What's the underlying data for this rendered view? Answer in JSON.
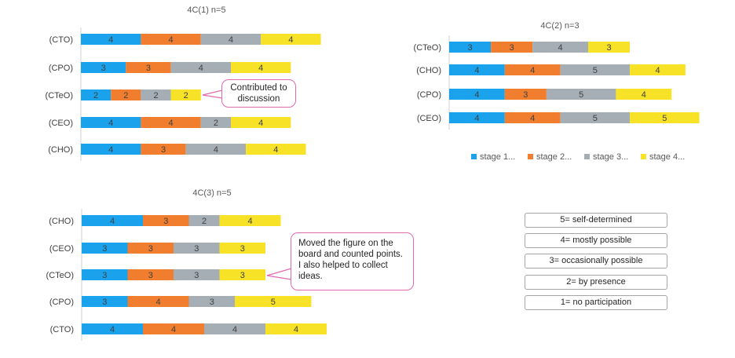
{
  "colors": {
    "stage1": "#1aa2ec",
    "stage2": "#f07e2e",
    "stage3": "#a5aeb5",
    "stage4": "#f7e228",
    "callout_border": "#e06ab0"
  },
  "chart_data": [
    {
      "id": "c1",
      "type": "bar",
      "stacked": true,
      "orientation": "horizontal",
      "title": "4C(1) n=5",
      "categories": [
        "(CTO)",
        "(CPO)",
        "(CTeO)",
        "(CEO)",
        "(CHO)"
      ],
      "series": [
        {
          "name": "stage 1...",
          "values": [
            4,
            3,
            2,
            4,
            4
          ]
        },
        {
          "name": "stage 2...",
          "values": [
            4,
            3,
            2,
            4,
            3
          ]
        },
        {
          "name": "stage 3...",
          "values": [
            4,
            4,
            2,
            2,
            4
          ]
        },
        {
          "name": "stage 4...",
          "values": [
            4,
            4,
            2,
            4,
            4
          ]
        }
      ],
      "xlim": [
        0,
        17
      ]
    },
    {
      "id": "c2",
      "type": "bar",
      "stacked": true,
      "orientation": "horizontal",
      "title": "4C(2) n=3",
      "categories": [
        "(CTeO)",
        "(CHO)",
        "(CPO)",
        "(CEO)"
      ],
      "series": [
        {
          "name": "stage 1...",
          "values": [
            3,
            4,
            4,
            4
          ]
        },
        {
          "name": "stage 2...",
          "values": [
            3,
            4,
            3,
            4
          ]
        },
        {
          "name": "stage 3...",
          "values": [
            4,
            5,
            5,
            5
          ]
        },
        {
          "name": "stage 4...",
          "values": [
            3,
            4,
            4,
            5
          ]
        }
      ],
      "legend": [
        "stage 1...",
        "stage 2...",
        "stage 3...",
        "stage 4..."
      ],
      "xlim": [
        0,
        18
      ]
    },
    {
      "id": "c3",
      "type": "bar",
      "stacked": true,
      "orientation": "horizontal",
      "title": "4C(3) n=5",
      "categories": [
        "(CHO)",
        "(CEO)",
        "(CTeO)",
        "(CPO)",
        "(CTO)"
      ],
      "series": [
        {
          "name": "stage 1...",
          "values": [
            4,
            3,
            3,
            3,
            4
          ]
        },
        {
          "name": "stage 2...",
          "values": [
            3,
            3,
            3,
            4,
            4
          ]
        },
        {
          "name": "stage 3...",
          "values": [
            2,
            3,
            3,
            3,
            4
          ]
        },
        {
          "name": "stage 4...",
          "values": [
            4,
            3,
            3,
            5,
            4
          ]
        }
      ],
      "xlim": [
        0,
        17
      ]
    }
  ],
  "callouts": {
    "c1_text": "Contributed to discussion",
    "c3_text": "Moved the figure on the board and counted points. I also helped to collect ideas."
  },
  "scale_legend": [
    "5= self-determined",
    "4= mostly possible",
    "3= occasionally possible",
    "2= by presence",
    "1= no participation"
  ]
}
